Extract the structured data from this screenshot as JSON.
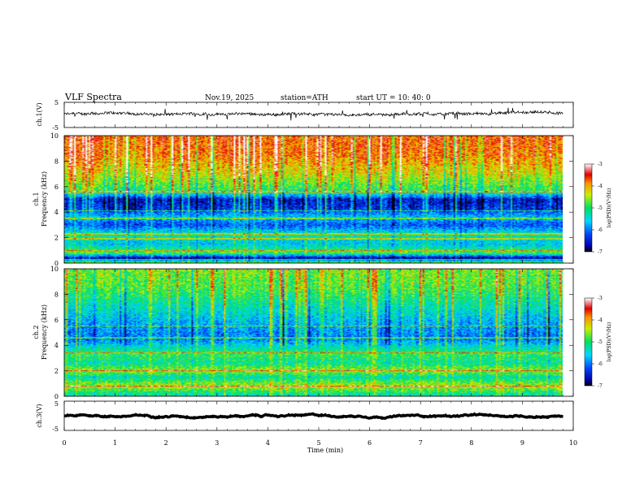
{
  "header": {
    "title": "VLF  Spectra",
    "date": "Nov.19, 2025",
    "station": "station=ATH",
    "start": "start  UT  =    10: 40: 0"
  },
  "chart_data": [
    {
      "type": "line",
      "panel": "ch1-waveform",
      "ylabel": "ch.1(V)",
      "yticks": [
        "5",
        "-5"
      ],
      "ylim": [
        -5,
        5
      ],
      "xlim": [
        0,
        10
      ],
      "x_extent": [
        0,
        9.8
      ],
      "mean_level": 0.3,
      "noise_amplitude": 1.0
    },
    {
      "type": "heatmap",
      "panel": "ch1-spectrogram",
      "ylabel_channel": "ch.1",
      "ylabel": "Frequency  (kHz)",
      "yticks": [
        "0",
        "2",
        "4",
        "6",
        "8",
        "10"
      ],
      "ylim": [
        0,
        10
      ],
      "xlim": [
        0,
        10
      ],
      "x_extent": [
        0,
        9.8
      ],
      "colorbar": {
        "label": "log(PSD)(V²/Hz)",
        "ticks": [
          "-3",
          "-4",
          "-5",
          "-6",
          "-7"
        ],
        "range": [
          -7,
          -3
        ]
      },
      "profile_by_frequency_khz": [
        [
          0,
          -4.6
        ],
        [
          0.4,
          -6.8
        ],
        [
          0.8,
          -4.8
        ],
        [
          1.5,
          -5.6
        ],
        [
          2.2,
          -5.2
        ],
        [
          3.0,
          -6.2
        ],
        [
          3.6,
          -5.6
        ],
        [
          4.2,
          -6.3
        ],
        [
          5.0,
          -6.5
        ],
        [
          5.6,
          -5.0
        ],
        [
          7.0,
          -4.3
        ],
        [
          8.5,
          -3.8
        ],
        [
          10,
          -3.7
        ]
      ],
      "narrowband_lines_khz": [
        0.3,
        1.0,
        1.9,
        2.3,
        3.5,
        4.1,
        5.6
      ]
    },
    {
      "type": "heatmap",
      "panel": "ch2-spectrogram",
      "ylabel_channel": "ch.2",
      "ylabel": "Frequency  (kHz)",
      "yticks": [
        "0",
        "2",
        "4",
        "6",
        "8",
        "10"
      ],
      "ylim": [
        0,
        10
      ],
      "xlim": [
        0,
        10
      ],
      "x_extent": [
        0,
        9.8
      ],
      "colorbar": {
        "label": "log(PSD)(V²/Hz)",
        "ticks": [
          "-3",
          "-4",
          "-5",
          "-6",
          "-7"
        ],
        "range": [
          -7,
          -3
        ]
      },
      "profile_by_frequency_khz": [
        [
          0,
          -5.4
        ],
        [
          0.8,
          -4.4
        ],
        [
          1.5,
          -5.3
        ],
        [
          2.0,
          -4.5
        ],
        [
          2.6,
          -5.2
        ],
        [
          3.3,
          -4.9
        ],
        [
          4.0,
          -5.5
        ],
        [
          4.5,
          -6.0
        ],
        [
          5.5,
          -5.8
        ],
        [
          7.0,
          -5.3
        ],
        [
          8.5,
          -4.8
        ],
        [
          10,
          -4.6
        ]
      ],
      "narrowband_lines_khz": [
        0.8,
        2.0,
        3.4,
        4.6,
        5.5
      ]
    },
    {
      "type": "line",
      "panel": "ch3-waveform",
      "ylabel": "ch.3(V)",
      "yticks": [
        "5",
        "-5"
      ],
      "ylim": [
        -5,
        5
      ],
      "xlim": [
        0,
        10
      ],
      "x_extent": [
        0,
        9.8
      ],
      "mean_level": 0.0,
      "noise_amplitude": 0.15
    }
  ],
  "x_axis": {
    "label": "Time  (min)",
    "ticks": [
      "0",
      "1",
      "2",
      "3",
      "4",
      "5",
      "6",
      "7",
      "8",
      "9",
      "10"
    ]
  }
}
